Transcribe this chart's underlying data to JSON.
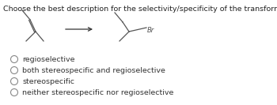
{
  "title": "Choose the best description for the selectivity/specificity of the transformation shown below:",
  "title_fontsize": 6.8,
  "options": [
    "regioselective",
    "both stereospecific and regioselective",
    "stereospecific",
    "neither stereospecific nor regioselective"
  ],
  "option_fontsize": 6.8,
  "bg_color": "#ffffff",
  "text_color": "#333333",
  "br_label": "Br",
  "mol_color": "#555555"
}
